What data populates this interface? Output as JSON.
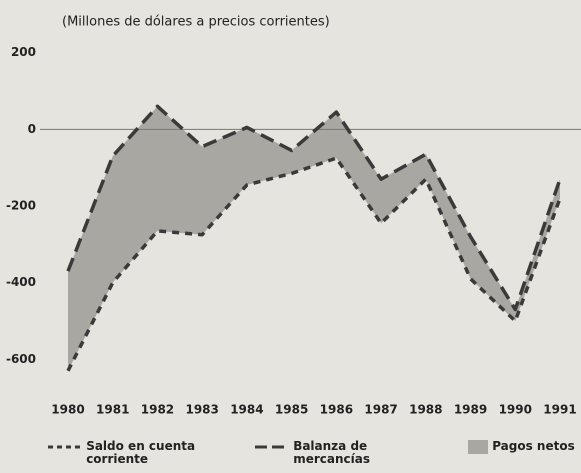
{
  "chart_data": {
    "type": "line",
    "title": "(Millones de dólares a precios corrientes)",
    "categories": [
      "1980",
      "1981",
      "1982",
      "1983",
      "1984",
      "1985",
      "1986",
      "1987",
      "1988",
      "1989",
      "1990",
      "1991"
    ],
    "series": [
      {
        "name": "Saldo en cuenta corriente",
        "color": "#3a3a3a",
        "dash": "short",
        "values": [
          -630,
          -400,
          -265,
          -275,
          -145,
          -115,
          -75,
          -245,
          -130,
          -390,
          -500,
          -180
        ]
      },
      {
        "name": "Balanza de mercancías",
        "color": "#3a3a3a",
        "dash": "long",
        "values": [
          -370,
          -70,
          60,
          -45,
          5,
          -55,
          45,
          -130,
          -65,
          -280,
          -470,
          -130
        ]
      }
    ],
    "area": {
      "name": "Pagos netos",
      "color": "#a9a7a2"
    },
    "ylim": [
      -680,
      220
    ],
    "yticks": [
      200,
      0,
      -200,
      -400,
      -600
    ]
  }
}
